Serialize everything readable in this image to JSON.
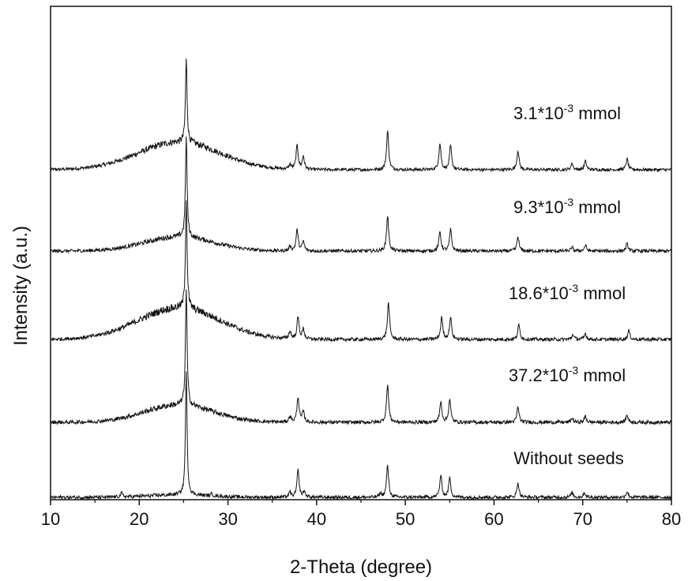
{
  "chart_data": {
    "type": "line",
    "xlabel": "2-Theta (degree)",
    "ylabel": "Intensity (a.u.)",
    "xlim": [
      10,
      80
    ],
    "xticks": [
      10,
      20,
      30,
      40,
      50,
      60,
      70,
      80
    ],
    "xtick_labels": [
      "10",
      "20",
      "30",
      "40",
      "50",
      "60",
      "70",
      "80"
    ],
    "y_tick_labels_shown": false,
    "grid": false,
    "legend": "none; series labeled inline above each trace",
    "line_color": "#111111",
    "series": [
      {
        "name": "3.1*10-3 mmol",
        "label_parts": {
          "base": "3.1*10",
          "exp": "-3",
          "unit": " mmol"
        },
        "offset": 4,
        "peaks": [
          [
            25.3,
            1.9
          ],
          [
            37.0,
            0.1
          ],
          [
            37.8,
            0.55
          ],
          [
            38.5,
            0.3
          ],
          [
            48.0,
            0.9
          ],
          [
            53.9,
            0.6
          ],
          [
            55.1,
            0.55
          ],
          [
            62.7,
            0.45
          ],
          [
            68.8,
            0.15
          ],
          [
            70.3,
            0.2
          ],
          [
            75.0,
            0.25
          ]
        ]
      },
      {
        "name": "9.3*10-3 mmol",
        "label_parts": {
          "base": "9.3*10",
          "exp": "-3",
          "unit": " mmol"
        },
        "offset": 3,
        "peaks": [
          [
            25.3,
            2.1
          ],
          [
            37.0,
            0.1
          ],
          [
            37.8,
            0.45
          ],
          [
            38.5,
            0.2
          ],
          [
            48.0,
            0.75
          ],
          [
            53.9,
            0.4
          ],
          [
            55.1,
            0.45
          ],
          [
            62.7,
            0.3
          ],
          [
            68.8,
            0.08
          ],
          [
            70.3,
            0.12
          ],
          [
            75.0,
            0.15
          ]
        ]
      },
      {
        "name": "18.6*10-3 mmol",
        "label_parts": {
          "base": "18.6*10",
          "exp": "-3",
          "unit": " mmol"
        },
        "offset": 2,
        "peaks": [
          [
            25.3,
            2.2
          ],
          [
            37.0,
            0.15
          ],
          [
            37.9,
            0.45
          ],
          [
            38.5,
            0.2
          ],
          [
            48.1,
            0.75
          ],
          [
            54.1,
            0.45
          ],
          [
            55.1,
            0.45
          ],
          [
            62.8,
            0.3
          ],
          [
            68.9,
            0.1
          ],
          [
            70.3,
            0.12
          ],
          [
            75.2,
            0.18
          ]
        ]
      },
      {
        "name": "37.2*10-3 mmol",
        "label_parts": {
          "base": "37.2*10",
          "exp": "-3",
          "unit": " mmol"
        },
        "offset": 1,
        "peaks": [
          [
            25.3,
            2.25
          ],
          [
            37.0,
            0.12
          ],
          [
            37.9,
            0.5
          ],
          [
            38.5,
            0.2
          ],
          [
            48.0,
            0.75
          ],
          [
            54.0,
            0.4
          ],
          [
            55.0,
            0.45
          ],
          [
            62.7,
            0.3
          ],
          [
            68.8,
            0.08
          ],
          [
            70.3,
            0.12
          ],
          [
            75.0,
            0.15
          ]
        ]
      },
      {
        "name": "Without seeds",
        "label_parts": {
          "base": "Without seeds",
          "exp": "",
          "unit": ""
        },
        "offset": 0,
        "peaks": [
          [
            18.0,
            0.08
          ],
          [
            25.3,
            2.5
          ],
          [
            28.2,
            0.04
          ],
          [
            37.0,
            0.1
          ],
          [
            37.9,
            0.55
          ],
          [
            38.6,
            0.12
          ],
          [
            47.2,
            0.08
          ],
          [
            48.0,
            0.65
          ],
          [
            54.0,
            0.45
          ],
          [
            55.0,
            0.4
          ],
          [
            62.7,
            0.3
          ],
          [
            68.8,
            0.1
          ],
          [
            70.2,
            0.1
          ],
          [
            75.0,
            0.12
          ]
        ]
      }
    ]
  }
}
